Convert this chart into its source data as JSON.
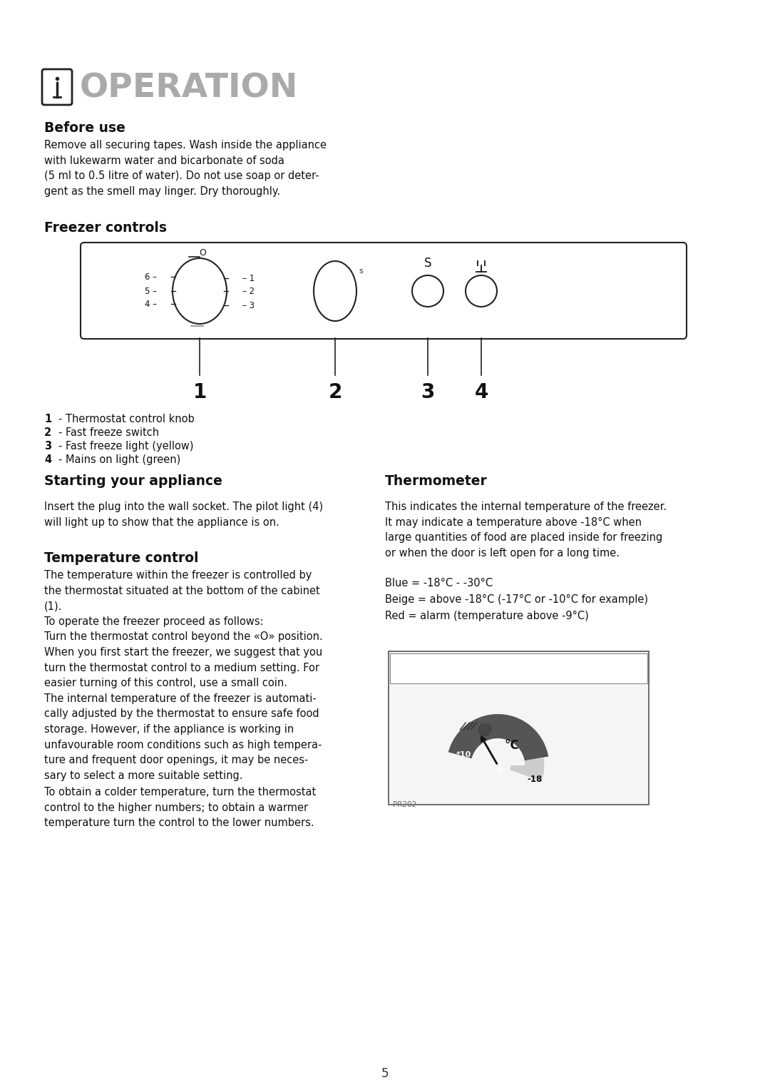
{
  "bg_color": "#ffffff",
  "title_text": "OPERATION",
  "section1_title": "Before use",
  "section1_body": "Remove all securing tapes. Wash inside the appliance\nwith lukewarm water and bicarbonate of soda\n(5 ml to 0.5 litre of water). Do not use soap or deter-\ngent as the smell may linger. Dry thoroughly.",
  "section2_title": "Freezer controls",
  "diagram_labels": [
    "1",
    "2",
    "3",
    "4"
  ],
  "diagram_legend": [
    "1 - Thermostat control knob",
    "2 - Fast freeze switch",
    "3 - Fast freeze light (yellow)",
    "4 - Mains on light (green)"
  ],
  "section3_title": "Starting your appliance",
  "section3_body": "Insert the plug into the wall socket. The pilot light (4)\nwill light up to show that the appliance is on.",
  "section4_title": "Thermometer",
  "section4_body": "This indicates the internal temperature of the freezer.\nIt may indicate a temperature above -18°C when\nlarge quantities of food are placed inside for freezing\nor when the door is left open for a long time.",
  "section4_sub": "Blue = -18°C - -30°C\nBeige = above -18°C (-17°C or -10°C for example)\nRed = alarm (temperature above -9°C)",
  "section5_title": "Temperature control",
  "section5_body": "The temperature within the freezer is controlled by\nthe thermostat situated at the bottom of the cabinet\n(1).\nTo operate the freezer proceed as follows:\nTurn the thermostat control beyond the «O» position.\nWhen you first start the freezer, we suggest that you\nturn the thermostat control to a medium setting. For\neasier turning of this control, use a small coin.\nThe internal temperature of the freezer is automati-\ncally adjusted by the thermostat to ensure safe food\nstorage. However, if the appliance is working in\nunfavourable room conditions such as high tempera-\nture and frequent door openings, it may be neces-\nsary to select a more suitable setting.",
  "section5_body2": "To obtain a colder temperature, turn the thermostat\ncontrol to the higher numbers; to obtain a warmer\ntemperature turn the control to the lower numbers.",
  "page_num": "5"
}
